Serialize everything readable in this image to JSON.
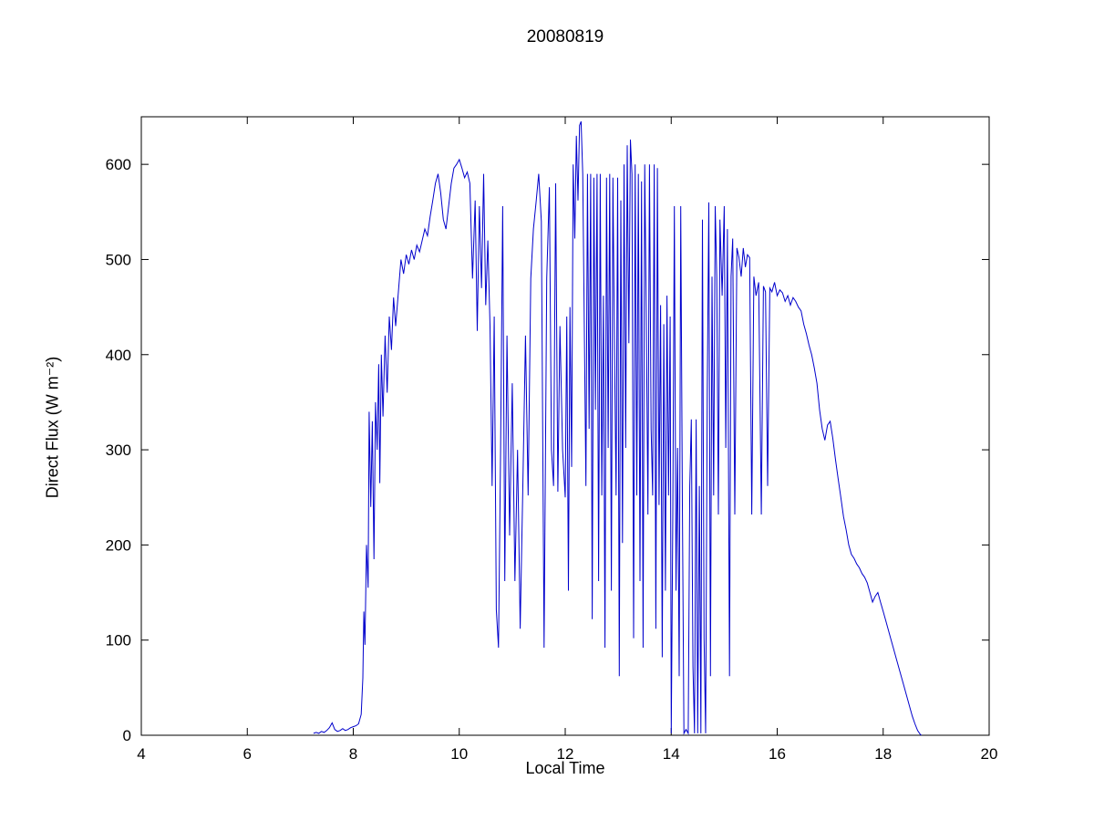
{
  "title": "20080819",
  "chart_data": {
    "type": "line",
    "title": "20080819",
    "xlabel": "Local Time",
    "ylabel": "Direct Flux (W m⁻²)",
    "xlim": [
      4,
      20
    ],
    "ylim": [
      0,
      650
    ],
    "xticks": [
      4,
      6,
      8,
      10,
      12,
      14,
      16,
      18,
      20
    ],
    "yticks": [
      0,
      100,
      200,
      300,
      400,
      500,
      600
    ],
    "grid": false,
    "legend": "none",
    "line_color": "#0000CC",
    "frame_color": "#000000",
    "series": [
      {
        "name": "direct_flux",
        "points": [
          [
            7.25,
            2
          ],
          [
            7.3,
            3
          ],
          [
            7.35,
            2
          ],
          [
            7.4,
            4
          ],
          [
            7.45,
            3
          ],
          [
            7.5,
            5
          ],
          [
            7.55,
            8
          ],
          [
            7.6,
            13
          ],
          [
            7.65,
            6
          ],
          [
            7.7,
            4
          ],
          [
            7.75,
            5
          ],
          [
            7.8,
            7
          ],
          [
            7.85,
            5
          ],
          [
            7.9,
            6
          ],
          [
            7.95,
            8
          ],
          [
            8.0,
            9
          ],
          [
            8.05,
            10
          ],
          [
            8.1,
            12
          ],
          [
            8.15,
            22
          ],
          [
            8.18,
            60
          ],
          [
            8.2,
            130
          ],
          [
            8.22,
            95
          ],
          [
            8.25,
            200
          ],
          [
            8.28,
            155
          ],
          [
            8.3,
            340
          ],
          [
            8.33,
            240
          ],
          [
            8.36,
            330
          ],
          [
            8.39,
            185
          ],
          [
            8.42,
            350
          ],
          [
            8.45,
            300
          ],
          [
            8.48,
            390
          ],
          [
            8.5,
            265
          ],
          [
            8.53,
            400
          ],
          [
            8.56,
            335
          ],
          [
            8.6,
            420
          ],
          [
            8.64,
            360
          ],
          [
            8.68,
            440
          ],
          [
            8.72,
            405
          ],
          [
            8.76,
            460
          ],
          [
            8.8,
            430
          ],
          [
            8.85,
            465
          ],
          [
            8.9,
            500
          ],
          [
            8.95,
            485
          ],
          [
            9.0,
            505
          ],
          [
            9.05,
            495
          ],
          [
            9.1,
            510
          ],
          [
            9.15,
            500
          ],
          [
            9.2,
            515
          ],
          [
            9.25,
            508
          ],
          [
            9.3,
            520
          ],
          [
            9.35,
            532
          ],
          [
            9.4,
            525
          ],
          [
            9.45,
            545
          ],
          [
            9.5,
            562
          ],
          [
            9.55,
            580
          ],
          [
            9.6,
            590
          ],
          [
            9.65,
            570
          ],
          [
            9.7,
            542
          ],
          [
            9.75,
            532
          ],
          [
            9.8,
            556
          ],
          [
            9.85,
            580
          ],
          [
            9.9,
            596
          ],
          [
            9.95,
            600
          ],
          [
            10.0,
            605
          ],
          [
            10.05,
            596
          ],
          [
            10.1,
            586
          ],
          [
            10.15,
            592
          ],
          [
            10.2,
            580
          ],
          [
            10.25,
            480
          ],
          [
            10.3,
            562
          ],
          [
            10.34,
            425
          ],
          [
            10.38,
            556
          ],
          [
            10.42,
            470
          ],
          [
            10.46,
            590
          ],
          [
            10.5,
            452
          ],
          [
            10.54,
            520
          ],
          [
            10.58,
            430
          ],
          [
            10.62,
            262
          ],
          [
            10.66,
            440
          ],
          [
            10.7,
            132
          ],
          [
            10.74,
            92
          ],
          [
            10.78,
            300
          ],
          [
            10.82,
            556
          ],
          [
            10.86,
            162
          ],
          [
            10.9,
            420
          ],
          [
            10.95,
            210
          ],
          [
            11.0,
            370
          ],
          [
            11.05,
            162
          ],
          [
            11.1,
            300
          ],
          [
            11.15,
            112
          ],
          [
            11.2,
            262
          ],
          [
            11.25,
            420
          ],
          [
            11.3,
            252
          ],
          [
            11.35,
            480
          ],
          [
            11.4,
            532
          ],
          [
            11.45,
            560
          ],
          [
            11.5,
            590
          ],
          [
            11.55,
            540
          ],
          [
            11.6,
            92
          ],
          [
            11.65,
            480
          ],
          [
            11.7,
            576
          ],
          [
            11.74,
            300
          ],
          [
            11.78,
            262
          ],
          [
            11.82,
            580
          ],
          [
            11.86,
            256
          ],
          [
            11.9,
            430
          ],
          [
            11.95,
            300
          ],
          [
            12.0,
            250
          ],
          [
            12.03,
            440
          ],
          [
            12.06,
            152
          ],
          [
            12.09,
            450
          ],
          [
            12.12,
            282
          ],
          [
            12.15,
            600
          ],
          [
            12.18,
            522
          ],
          [
            12.21,
            630
          ],
          [
            12.24,
            562
          ],
          [
            12.27,
            641
          ],
          [
            12.3,
            645
          ],
          [
            12.33,
            590
          ],
          [
            12.36,
            432
          ],
          [
            12.39,
            262
          ],
          [
            12.42,
            590
          ],
          [
            12.45,
            322
          ],
          [
            12.48,
            590
          ],
          [
            12.51,
            122
          ],
          [
            12.54,
            586
          ],
          [
            12.57,
            342
          ],
          [
            12.6,
            590
          ],
          [
            12.63,
            162
          ],
          [
            12.66,
            590
          ],
          [
            12.69,
            252
          ],
          [
            12.72,
            462
          ],
          [
            12.75,
            92
          ],
          [
            12.78,
            586
          ],
          [
            12.81,
            302
          ],
          [
            12.84,
            590
          ],
          [
            12.87,
            152
          ],
          [
            12.9,
            586
          ],
          [
            12.93,
            402
          ],
          [
            12.96,
            252
          ],
          [
            12.99,
            586
          ],
          [
            13.02,
            62
          ],
          [
            13.05,
            562
          ],
          [
            13.08,
            202
          ],
          [
            13.11,
            600
          ],
          [
            13.14,
            302
          ],
          [
            13.17,
            620
          ],
          [
            13.2,
            412
          ],
          [
            13.23,
            626
          ],
          [
            13.26,
            590
          ],
          [
            13.29,
            102
          ],
          [
            13.32,
            600
          ],
          [
            13.35,
            252
          ],
          [
            13.38,
            590
          ],
          [
            13.41,
            162
          ],
          [
            13.44,
            582
          ],
          [
            13.47,
            92
          ],
          [
            13.5,
            600
          ],
          [
            13.53,
            442
          ],
          [
            13.56,
            232
          ],
          [
            13.59,
            600
          ],
          [
            13.62,
            322
          ],
          [
            13.65,
            252
          ],
          [
            13.68,
            600
          ],
          [
            13.71,
            112
          ],
          [
            13.74,
            596
          ],
          [
            13.77,
            242
          ],
          [
            13.8,
            452
          ],
          [
            13.83,
            82
          ],
          [
            13.86,
            432
          ],
          [
            13.89,
            152
          ],
          [
            13.92,
            462
          ],
          [
            13.95,
            252
          ],
          [
            13.98,
            440
          ],
          [
            14.0,
            2
          ],
          [
            14.03,
            232
          ],
          [
            14.06,
            556
          ],
          [
            14.09,
            152
          ],
          [
            14.12,
            302
          ],
          [
            14.15,
            62
          ],
          [
            14.18,
            556
          ],
          [
            14.21,
            242
          ],
          [
            14.24,
            2
          ],
          [
            14.28,
            6
          ],
          [
            14.32,
            2
          ],
          [
            14.35,
            262
          ],
          [
            14.38,
            332
          ],
          [
            14.41,
            72
          ],
          [
            14.44,
            2
          ],
          [
            14.47,
            332
          ],
          [
            14.5,
            2
          ],
          [
            14.53,
            262
          ],
          [
            14.56,
            2
          ],
          [
            14.59,
            542
          ],
          [
            14.62,
            102
          ],
          [
            14.65,
            2
          ],
          [
            14.68,
            362
          ],
          [
            14.71,
            560
          ],
          [
            14.74,
            62
          ],
          [
            14.77,
            482
          ],
          [
            14.8,
            252
          ],
          [
            14.83,
            556
          ],
          [
            14.86,
            482
          ],
          [
            14.89,
            232
          ],
          [
            14.92,
            542
          ],
          [
            14.96,
            462
          ],
          [
            15.0,
            556
          ],
          [
            15.03,
            302
          ],
          [
            15.06,
            532
          ],
          [
            15.1,
            62
          ],
          [
            15.13,
            482
          ],
          [
            15.16,
            522
          ],
          [
            15.2,
            232
          ],
          [
            15.24,
            512
          ],
          [
            15.28,
            502
          ],
          [
            15.32,
            482
          ],
          [
            15.36,
            512
          ],
          [
            15.4,
            492
          ],
          [
            15.44,
            505
          ],
          [
            15.48,
            502
          ],
          [
            15.52,
            232
          ],
          [
            15.56,
            482
          ],
          [
            15.6,
            462
          ],
          [
            15.65,
            476
          ],
          [
            15.7,
            232
          ],
          [
            15.74,
            472
          ],
          [
            15.78,
            466
          ],
          [
            15.82,
            262
          ],
          [
            15.86,
            470
          ],
          [
            15.9,
            466
          ],
          [
            15.95,
            476
          ],
          [
            16.0,
            462
          ],
          [
            16.05,
            468
          ],
          [
            16.1,
            465
          ],
          [
            16.15,
            456
          ],
          [
            16.2,
            462
          ],
          [
            16.25,
            452
          ],
          [
            16.3,
            460
          ],
          [
            16.35,
            456
          ],
          [
            16.4,
            450
          ],
          [
            16.45,
            446
          ],
          [
            16.5,
            432
          ],
          [
            16.55,
            422
          ],
          [
            16.6,
            410
          ],
          [
            16.65,
            400
          ],
          [
            16.7,
            386
          ],
          [
            16.75,
            370
          ],
          [
            16.8,
            342
          ],
          [
            16.85,
            322
          ],
          [
            16.9,
            310
          ],
          [
            16.95,
            326
          ],
          [
            17.0,
            330
          ],
          [
            17.05,
            312
          ],
          [
            17.1,
            290
          ],
          [
            17.15,
            270
          ],
          [
            17.2,
            250
          ],
          [
            17.25,
            230
          ],
          [
            17.3,
            216
          ],
          [
            17.35,
            200
          ],
          [
            17.4,
            190
          ],
          [
            17.45,
            186
          ],
          [
            17.5,
            180
          ],
          [
            17.55,
            176
          ],
          [
            17.6,
            170
          ],
          [
            17.65,
            166
          ],
          [
            17.7,
            160
          ],
          [
            17.75,
            150
          ],
          [
            17.8,
            140
          ],
          [
            17.85,
            146
          ],
          [
            17.9,
            150
          ],
          [
            17.95,
            140
          ],
          [
            18.0,
            130
          ],
          [
            18.05,
            120
          ],
          [
            18.1,
            110
          ],
          [
            18.15,
            100
          ],
          [
            18.2,
            90
          ],
          [
            18.25,
            80
          ],
          [
            18.3,
            70
          ],
          [
            18.35,
            60
          ],
          [
            18.4,
            50
          ],
          [
            18.45,
            40
          ],
          [
            18.5,
            30
          ],
          [
            18.55,
            20
          ],
          [
            18.6,
            12
          ],
          [
            18.65,
            5
          ],
          [
            18.7,
            1
          ],
          [
            18.72,
            0
          ]
        ]
      }
    ]
  }
}
